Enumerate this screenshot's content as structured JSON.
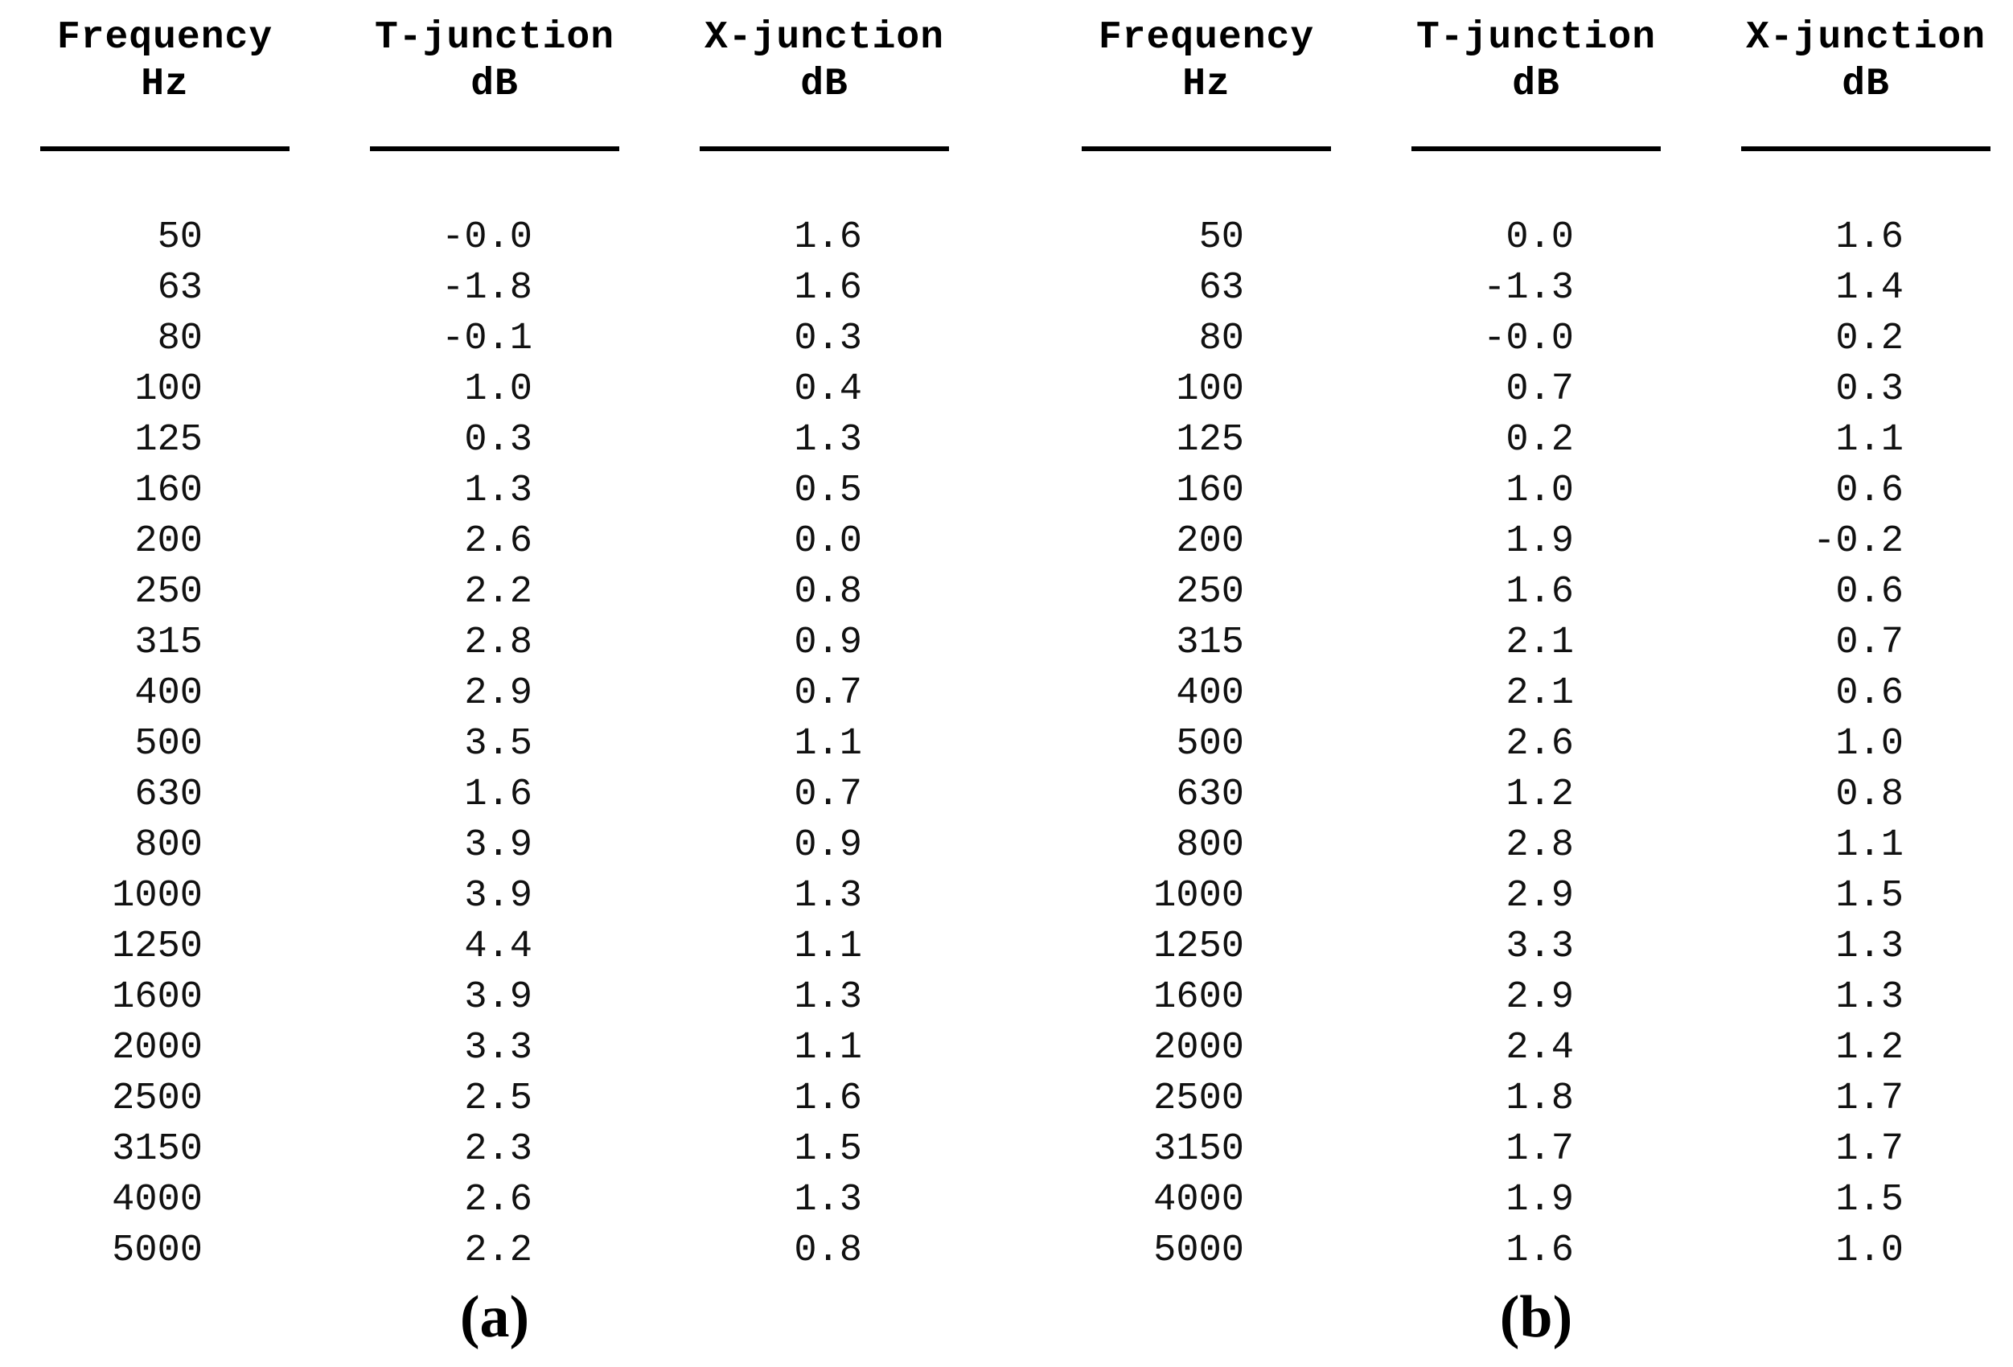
{
  "figure": {
    "tables": [
      {
        "caption": "(a)",
        "columns": [
          {
            "title": "Frequency",
            "unit": "Hz"
          },
          {
            "title": "T-junction",
            "unit": "dB"
          },
          {
            "title": "X-junction",
            "unit": "dB"
          }
        ],
        "rows": [
          [
            "50",
            "-0.0",
            "1.6"
          ],
          [
            "63",
            "-1.8",
            "1.6"
          ],
          [
            "80",
            "-0.1",
            "0.3"
          ],
          [
            "100",
            "1.0",
            "0.4"
          ],
          [
            "125",
            "0.3",
            "1.3"
          ],
          [
            "160",
            "1.3",
            "0.5"
          ],
          [
            "200",
            "2.6",
            "0.0"
          ],
          [
            "250",
            "2.2",
            "0.8"
          ],
          [
            "315",
            "2.8",
            "0.9"
          ],
          [
            "400",
            "2.9",
            "0.7"
          ],
          [
            "500",
            "3.5",
            "1.1"
          ],
          [
            "630",
            "1.6",
            "0.7"
          ],
          [
            "800",
            "3.9",
            "0.9"
          ],
          [
            "1000",
            "3.9",
            "1.3"
          ],
          [
            "1250",
            "4.4",
            "1.1"
          ],
          [
            "1600",
            "3.9",
            "1.3"
          ],
          [
            "2000",
            "3.3",
            "1.1"
          ],
          [
            "2500",
            "2.5",
            "1.6"
          ],
          [
            "3150",
            "2.3",
            "1.5"
          ],
          [
            "4000",
            "2.6",
            "1.3"
          ],
          [
            "5000",
            "2.2",
            "0.8"
          ]
        ]
      },
      {
        "caption": "(b)",
        "columns": [
          {
            "title": "Frequency",
            "unit": "Hz"
          },
          {
            "title": "T-junction",
            "unit": "dB"
          },
          {
            "title": "X-junction",
            "unit": "dB"
          }
        ],
        "rows": [
          [
            "50",
            "0.0",
            "1.6"
          ],
          [
            "63",
            "-1.3",
            "1.4"
          ],
          [
            "80",
            "-0.0",
            "0.2"
          ],
          [
            "100",
            "0.7",
            "0.3"
          ],
          [
            "125",
            "0.2",
            "1.1"
          ],
          [
            "160",
            "1.0",
            "0.6"
          ],
          [
            "200",
            "1.9",
            "-0.2"
          ],
          [
            "250",
            "1.6",
            "0.6"
          ],
          [
            "315",
            "2.1",
            "0.7"
          ],
          [
            "400",
            "2.1",
            "0.6"
          ],
          [
            "500",
            "2.6",
            "1.0"
          ],
          [
            "630",
            "1.2",
            "0.8"
          ],
          [
            "800",
            "2.8",
            "1.1"
          ],
          [
            "1000",
            "2.9",
            "1.5"
          ],
          [
            "1250",
            "3.3",
            "1.3"
          ],
          [
            "1600",
            "2.9",
            "1.3"
          ],
          [
            "2000",
            "2.4",
            "1.2"
          ],
          [
            "2500",
            "1.8",
            "1.7"
          ],
          [
            "3150",
            "1.7",
            "1.7"
          ],
          [
            "4000",
            "1.9",
            "1.5"
          ],
          [
            "5000",
            "1.6",
            "1.0"
          ]
        ]
      }
    ]
  }
}
